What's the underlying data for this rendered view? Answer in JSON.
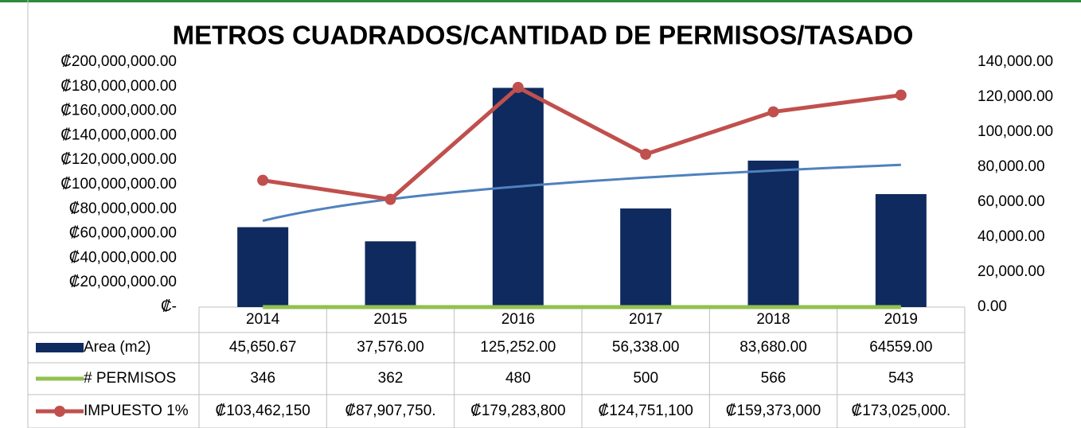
{
  "chart_data": {
    "type": "bar",
    "title": "METROS CUADRADOS/CANTIDAD DE PERMISOS/TASADO",
    "categories": [
      "2014",
      "2015",
      "2016",
      "2017",
      "2018",
      "2019"
    ],
    "series": [
      {
        "name": "Area (m2)",
        "type": "bar",
        "axis": "y2",
        "color": "#0f2a5e",
        "values": [
          45650.67,
          37576,
          125252,
          56338,
          83680,
          64559
        ],
        "value_labels": [
          "45,650.67",
          "37,576.00",
          "125,252.00",
          "56,338.00",
          "83,680.00",
          "64559.00"
        ]
      },
      {
        "name": "# PERMISOS",
        "type": "line",
        "color": "#92c050",
        "values": [
          346,
          362,
          480,
          500,
          566,
          543
        ]
      },
      {
        "name": "IMPUESTO 1%",
        "type": "line",
        "marker": true,
        "color": "#c0504d",
        "values": [
          103462150,
          87907750,
          179283800,
          124751100,
          159373000,
          173025000
        ],
        "value_labels": [
          "₡103,462,150",
          "₡87,907,750.",
          "₡179,283,800",
          "₡124,751,100",
          "₡159,373,000",
          "₡173,025,000."
        ]
      }
    ],
    "ylim": [
      0,
      200000000
    ],
    "yticks": [
      {
        "value": 0,
        "label": "₡-"
      },
      {
        "value": 20000000,
        "label": "₡20,000,000.00"
      },
      {
        "value": 40000000,
        "label": "₡40,000,000.00"
      },
      {
        "value": 60000000,
        "label": "₡60,000,000.00"
      },
      {
        "value": 80000000,
        "label": "₡80,000,000.00"
      },
      {
        "value": 100000000,
        "label": "₡100,000,000.00"
      },
      {
        "value": 120000000,
        "label": "₡120,000,000.00"
      },
      {
        "value": 140000000,
        "label": "₡140,000,000.00"
      },
      {
        "value": 160000000,
        "label": "₡160,000,000.00"
      },
      {
        "value": 180000000,
        "label": "₡180,000,000.00"
      },
      {
        "value": 200000000,
        "label": "₡200,000,000.00"
      }
    ],
    "y2lim": [
      0,
      140000
    ],
    "y2ticks": [
      {
        "value": 0,
        "label": "0.00"
      },
      {
        "value": 20000,
        "label": "20,000.00"
      },
      {
        "value": 40000,
        "label": "40,000.00"
      },
      {
        "value": 60000,
        "label": "60,000.00"
      },
      {
        "value": 80000,
        "label": "80,000.00"
      },
      {
        "value": 100000,
        "label": "100,000.00"
      },
      {
        "value": 120000,
        "label": "120,000.00"
      },
      {
        "value": 140000,
        "label": "140,000.00"
      }
    ],
    "trendline": true
  }
}
